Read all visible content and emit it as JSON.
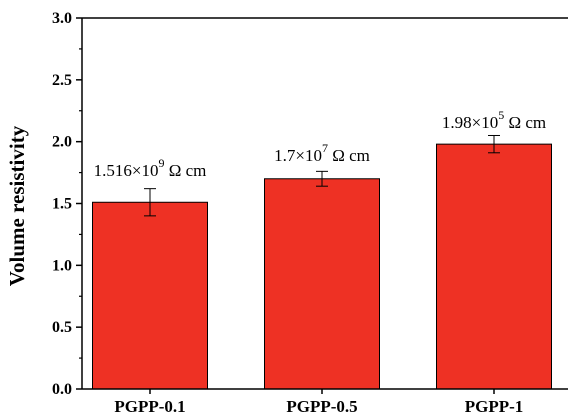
{
  "chart_data": {
    "type": "bar",
    "categories": [
      "PGPP-0.1",
      "PGPP-0.5",
      "PGPP-1"
    ],
    "values": [
      1.51,
      1.7,
      1.98
    ],
    "errors": [
      0.11,
      0.06,
      0.07
    ],
    "ylabel": "Volume resistivity",
    "xlabel": "",
    "ylim": [
      0,
      3.0
    ],
    "yticks": [
      "0.0",
      "0.5",
      "1.0",
      "1.5",
      "2.0",
      "2.5",
      "3.0"
    ],
    "ytick_values": [
      0,
      0.5,
      1.0,
      1.5,
      2.0,
      2.5,
      3.0
    ],
    "annotations": [
      {
        "mantissa": "1.516×10",
        "exponent": "9",
        "unit": " Ω cm"
      },
      {
        "mantissa": "1.7×10",
        "exponent": "7",
        "unit": " Ω cm"
      },
      {
        "mantissa": "1.98×10",
        "exponent": "5",
        "unit": " Ω cm"
      }
    ],
    "bar_color": "#ee3124",
    "grid": false
  }
}
